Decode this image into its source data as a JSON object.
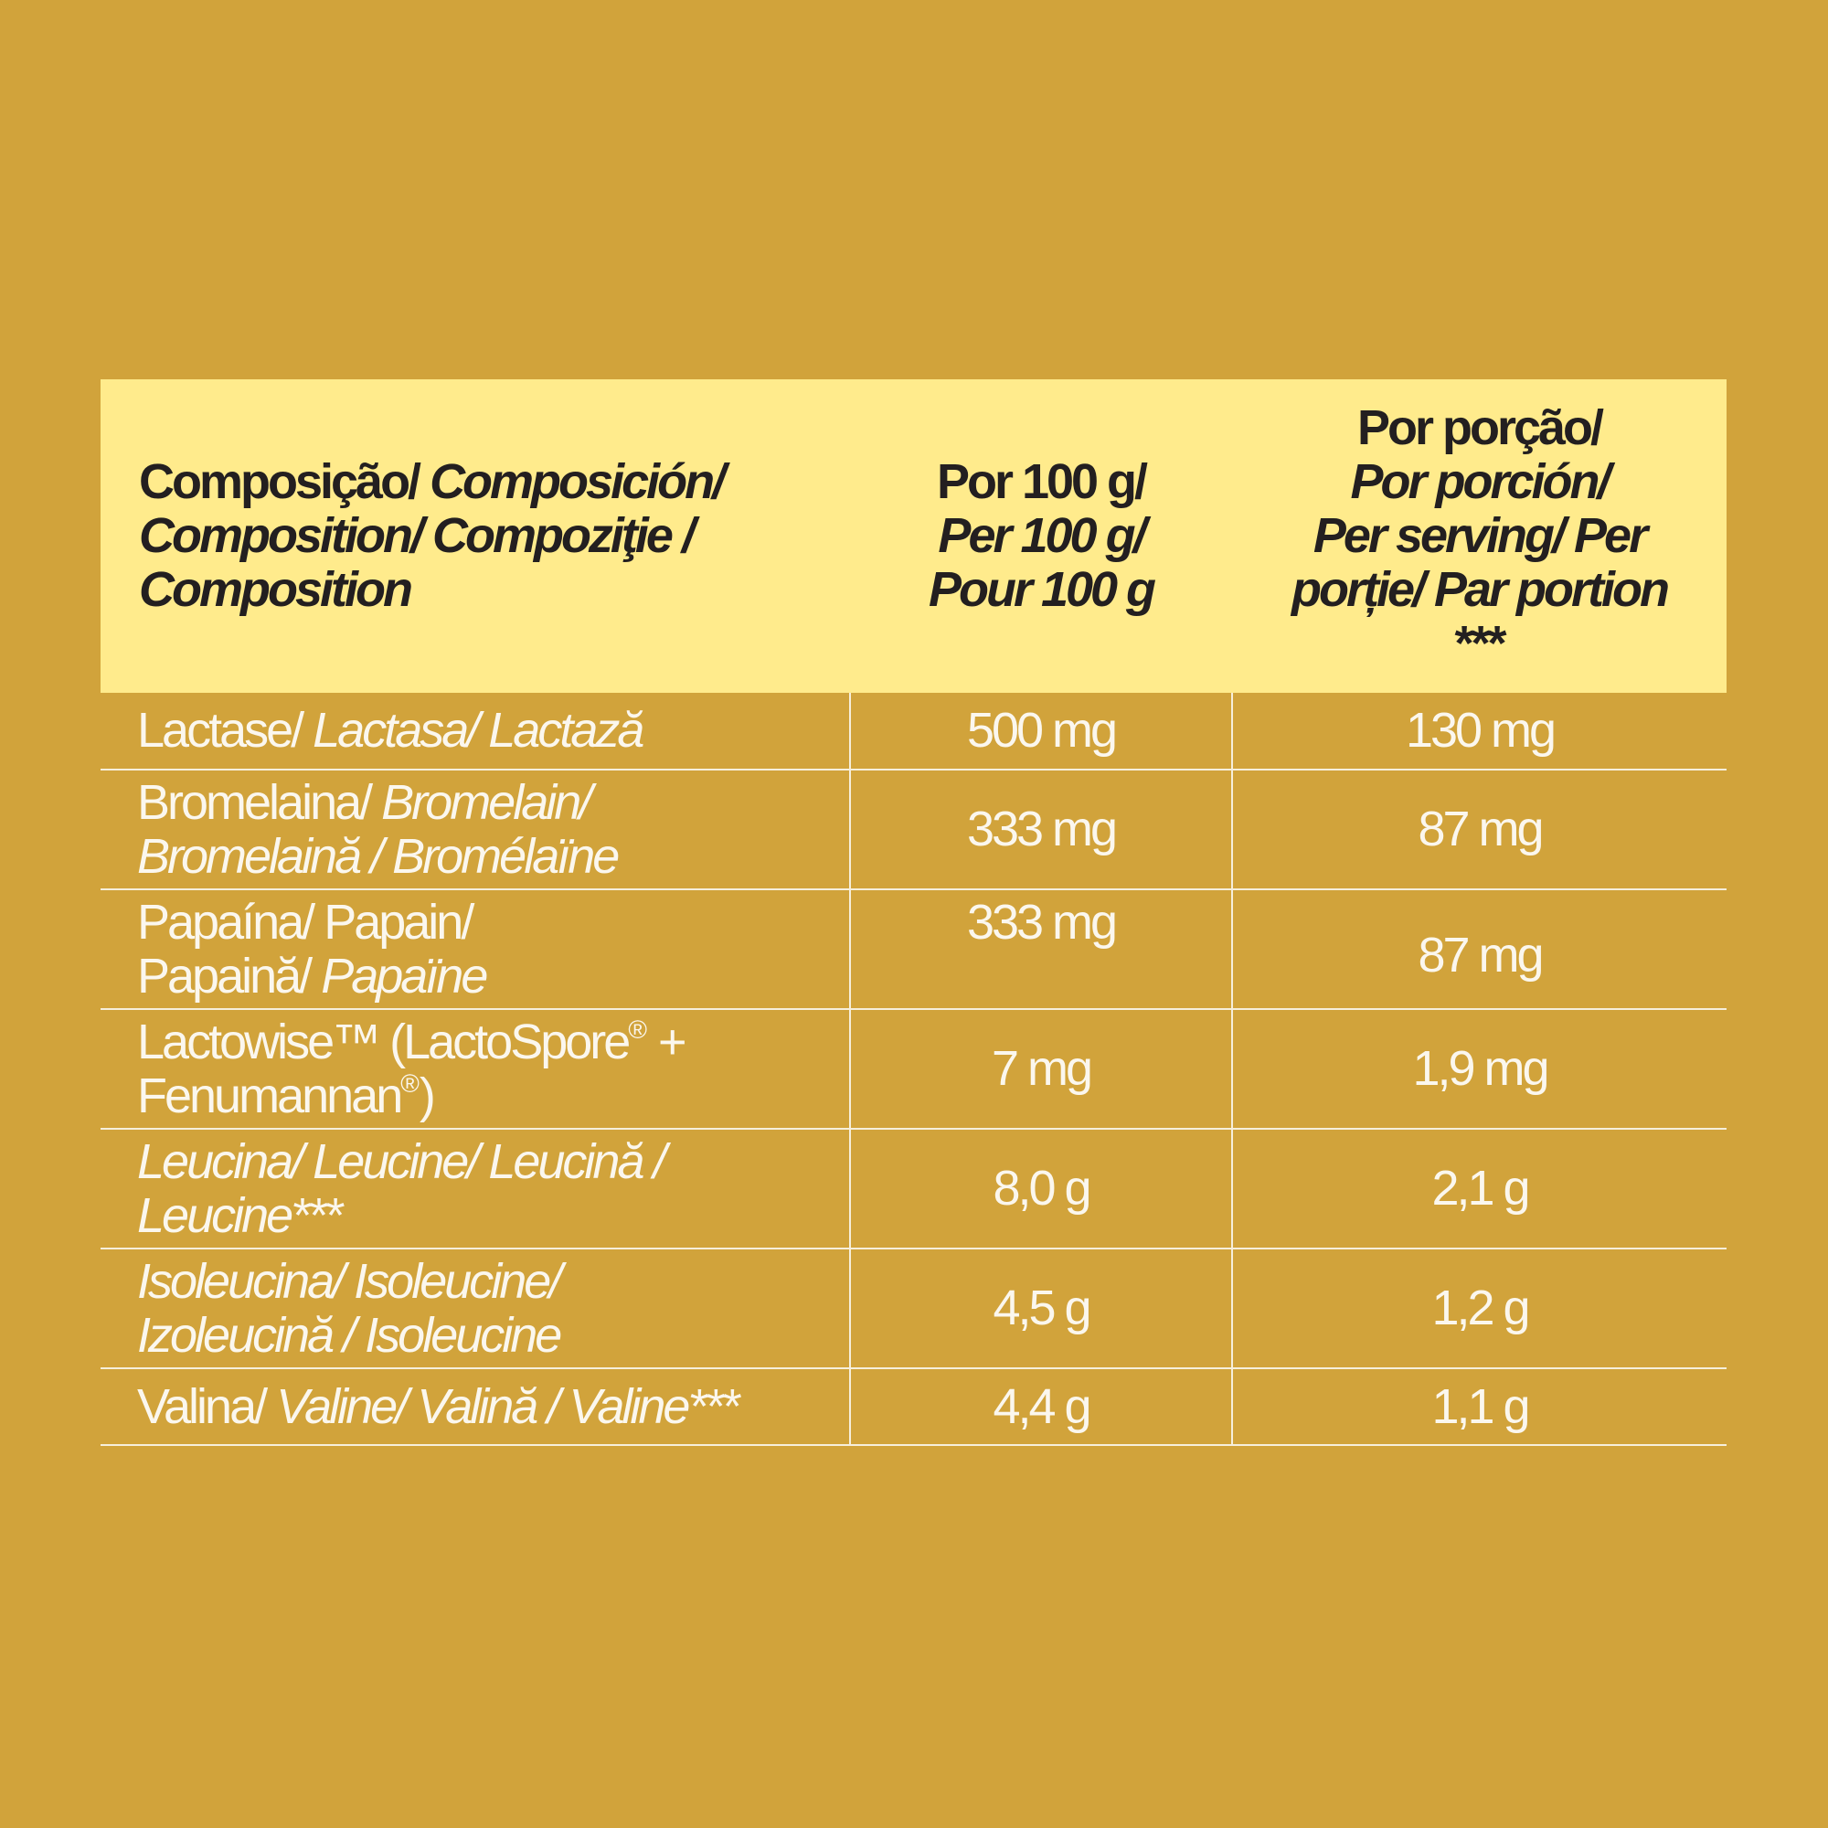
{
  "table": {
    "header": [
      [
        [
          {
            "text": "Composição/ "
          },
          {
            "text": "Composición/",
            "italic": true
          }
        ],
        [
          {
            "text": "Composition/ Compoziţie /",
            "italic": true
          }
        ],
        [
          {
            "text": "Composition",
            "italic": true
          }
        ]
      ],
      [
        [
          {
            "text": "Por 100 g/"
          }
        ],
        [
          {
            "text": "Per 100 g/",
            "italic": true
          }
        ],
        [
          {
            "text": "Pour 100 g",
            "italic": true
          }
        ]
      ],
      [
        [
          {
            "text": "Por porção/"
          }
        ],
        [
          {
            "text": "Por porción/",
            "italic": true
          }
        ],
        [
          {
            "text": "Per serving/ Per",
            "italic": true
          }
        ],
        [
          {
            "text": "porție/ Par portion",
            "italic": true
          }
        ],
        [
          {
            "text": "***"
          }
        ]
      ]
    ],
    "rows": [
      [
        [
          [
            {
              "text": "Lactase/ "
            },
            {
              "text": "Lactasa/ Lactază",
              "italic": true
            }
          ]
        ],
        [
          [
            {
              "text": "500 mg"
            }
          ]
        ],
        [
          [
            {
              "text": "130 mg"
            }
          ]
        ]
      ],
      [
        [
          [
            {
              "text": "Bromelaina/ "
            },
            {
              "text": "Bromelain/",
              "italic": true
            }
          ],
          [
            {
              "text": "Bromelaină / Bromélaïne",
              "italic": true
            }
          ]
        ],
        [
          [
            {
              "text": "333 mg"
            }
          ]
        ],
        [
          [
            {
              "text": "87 mg"
            }
          ]
        ]
      ],
      [
        [
          [
            {
              "text": "Papaína/ Papain/"
            }
          ],
          [
            {
              "text": "Papaină/ "
            },
            {
              "text": "Papaïne",
              "italic": true
            }
          ]
        ],
        [
          [
            {
              "text": "333 mg"
            }
          ]
        ],
        [
          [
            {
              "text": "87 mg"
            }
          ]
        ]
      ],
      [
        [
          [
            {
              "text": "Lactowise™ (LactoSpore"
            },
            {
              "text": "®",
              "sup": true
            },
            {
              "text": " +"
            }
          ],
          [
            {
              "text": "Fenumannan"
            },
            {
              "text": "®",
              "sup": true
            },
            {
              "text": ")"
            }
          ]
        ],
        [
          [
            {
              "text": "7 mg"
            }
          ]
        ],
        [
          [
            {
              "text": "1,9 mg"
            }
          ]
        ]
      ],
      [
        [
          [
            {
              "text": "Leucina/ Leucine/ Leucină /",
              "italic": true
            }
          ],
          [
            {
              "text": "Leucine***",
              "italic": true
            }
          ]
        ],
        [
          [
            {
              "text": "8,0 g"
            }
          ]
        ],
        [
          [
            {
              "text": "2,1 g"
            }
          ]
        ]
      ],
      [
        [
          [
            {
              "text": "Isoleucina/ Isoleucine/",
              "italic": true
            }
          ],
          [
            {
              "text": "Izoleucină / Isoleucine",
              "italic": true
            }
          ]
        ],
        [
          [
            {
              "text": "4,5 g"
            }
          ]
        ],
        [
          [
            {
              "text": "1,2 g"
            }
          ]
        ]
      ],
      [
        [
          [
            {
              "text": "Valina/ "
            },
            {
              "text": "Valine/ Valină / Valine***",
              "italic": true
            }
          ]
        ],
        [
          [
            {
              "text": "4,4 g"
            }
          ]
        ],
        [
          [
            {
              "text": "1,1 g"
            }
          ]
        ]
      ]
    ]
  }
}
